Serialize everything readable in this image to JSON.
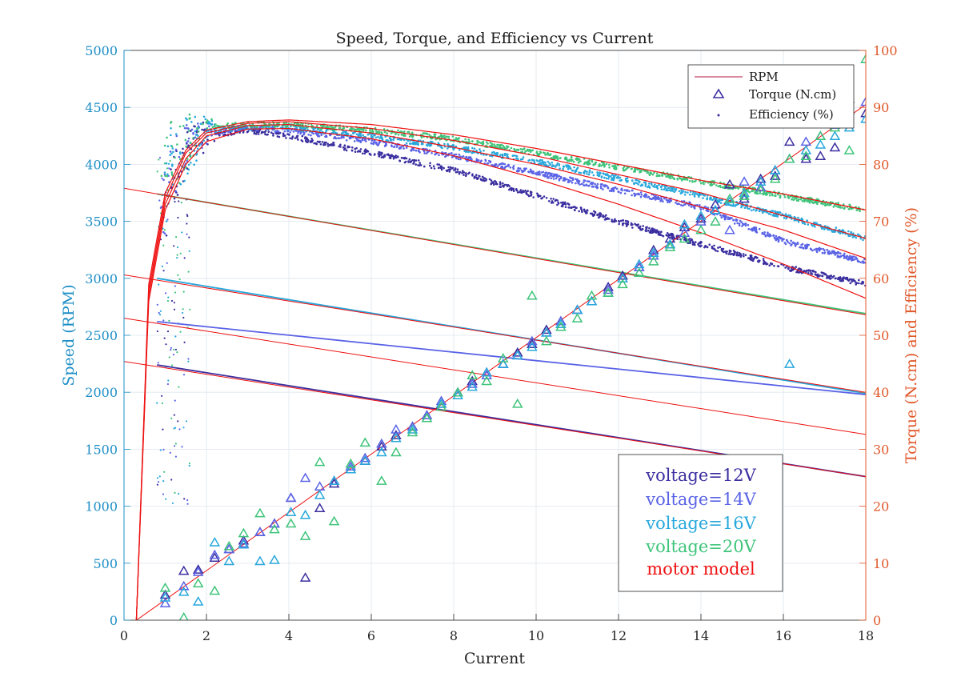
{
  "chart_data": {
    "type": "scatter",
    "title": "Speed, Torque, and Efficiency vs Current",
    "xlabel": "Current",
    "ylabel_left": "Speed (RPM)",
    "ylabel_right": "Torque (N.cm) and Efficiency (%)",
    "xlim": [
      0,
      18
    ],
    "ylim_left": [
      0,
      5000
    ],
    "ylim_right": [
      0,
      100
    ],
    "xticks": [
      "0",
      "2",
      "4",
      "6",
      "8",
      "10",
      "12",
      "14",
      "16",
      "18"
    ],
    "yticks_left": [
      "0",
      "500",
      "1000",
      "1500",
      "2000",
      "2500",
      "3000",
      "3500",
      "4000",
      "4500",
      "5000"
    ],
    "yticks_right": [
      "0",
      "10",
      "20",
      "30",
      "40",
      "50",
      "60",
      "70",
      "80",
      "90",
      "100"
    ],
    "grid": true,
    "legend_position": "top-right",
    "legend": [
      {
        "label": "RPM",
        "marker": "line",
        "color": "#b3123c"
      },
      {
        "label": "Torque (N.cm)",
        "marker": "triangle",
        "color": "#3b2fa0"
      },
      {
        "label": "Efficiency (%)",
        "marker": "dot",
        "color": "#3b2fa0"
      }
    ],
    "annotation_box": [
      {
        "text": "voltage=12V",
        "color": "#3b2fa0"
      },
      {
        "text": "voltage=14V",
        "color": "#5a63e6"
      },
      {
        "text": "voltage=16V",
        "color": "#28a8dc"
      },
      {
        "text": "voltage=20V",
        "color": "#3ec47a"
      },
      {
        "text": "motor model",
        "color": "#ee1111"
      }
    ],
    "series": [
      {
        "name": "voltage=12V",
        "color": "#3b2fa0",
        "rpm": {
          "x": [
            0.8,
            18
          ],
          "y": [
            2240,
            1260
          ]
        },
        "efficiency_peak": {
          "x": 3.4,
          "y": 86
        },
        "efficiency": {
          "x": [
            0.9,
            1.2,
            2,
            3,
            4,
            6,
            8,
            10,
            12,
            14,
            16,
            18
          ],
          "y": [
            72,
            80,
            85,
            86,
            85,
            82,
            79,
            74.5,
            70,
            66,
            62,
            59
          ]
        }
      },
      {
        "name": "voltage=14V",
        "color": "#5a63e6",
        "rpm": {
          "x": [
            0.8,
            18
          ],
          "y": [
            2620,
            1980
          ]
        },
        "efficiency": {
          "x": [
            0.9,
            1.2,
            2,
            3,
            4,
            6,
            8,
            10,
            12,
            14,
            16,
            18
          ],
          "y": [
            73,
            80.5,
            85.5,
            86.5,
            86,
            84,
            81.5,
            78.5,
            75.5,
            72.5,
            66.5,
            63
          ]
        }
      },
      {
        "name": "voltage=16V",
        "color": "#28a8dc",
        "rpm": {
          "x": [
            0.8,
            18
          ],
          "y": [
            3000,
            1990
          ]
        },
        "efficiency": {
          "x": [
            0.9,
            1.2,
            2,
            3,
            4,
            6,
            8,
            10,
            12,
            14,
            16,
            18
          ],
          "y": [
            74,
            81,
            86,
            86.5,
            86.5,
            85,
            83,
            80.5,
            77.5,
            74.5,
            71,
            67
          ]
        }
      },
      {
        "name": "voltage=20V",
        "color": "#3ec47a",
        "rpm": {
          "x": [
            0.8,
            18
          ],
          "y": [
            3740,
            2690
          ]
        },
        "efficiency": {
          "x": [
            0.9,
            1.2,
            2,
            3,
            4,
            6,
            8,
            10,
            12,
            14,
            16,
            18
          ],
          "y": [
            76,
            82,
            86.5,
            87,
            87,
            86,
            84.5,
            82,
            79.5,
            77,
            74.5,
            72
          ]
        }
      }
    ],
    "motor_model": {
      "color": "#ee1111",
      "torque_line": {
        "x": [
          0.3,
          18
        ],
        "y": [
          0,
          90.5
        ]
      },
      "rpm_lines": [
        {
          "x": [
            0,
            18
          ],
          "y": [
            2270,
            1260
          ]
        },
        {
          "x": [
            0,
            18
          ],
          "y": [
            2650,
            1630
          ]
        },
        {
          "x": [
            0,
            18
          ],
          "y": [
            3030,
            2000
          ]
        },
        {
          "x": [
            0,
            18
          ],
          "y": [
            3790,
            2680
          ]
        }
      ],
      "efficiency_curves": [
        {
          "x": [
            0.3,
            0.6,
            1,
            1.5,
            2,
            3,
            4,
            6,
            8,
            10,
            12,
            14,
            16,
            18
          ],
          "y": [
            0,
            56,
            72,
            80,
            84,
            86.2,
            86.3,
            84.5,
            81.5,
            77.5,
            73,
            68,
            62.5,
            56.5
          ]
        },
        {
          "x": [
            0.3,
            0.6,
            1,
            1.5,
            2,
            3,
            4,
            6,
            8,
            10,
            12,
            14,
            16,
            18
          ],
          "y": [
            0,
            57,
            73,
            81,
            85,
            86.8,
            87,
            85.5,
            83,
            80,
            76.5,
            72.5,
            68.5,
            63.5
          ]
        },
        {
          "x": [
            0.3,
            0.6,
            1,
            1.5,
            2,
            3,
            4,
            6,
            8,
            10,
            12,
            14,
            16,
            18
          ],
          "y": [
            0,
            58,
            74,
            82,
            85.5,
            87.2,
            87.5,
            86.3,
            84.2,
            81.5,
            78.2,
            75,
            71,
            67
          ]
        },
        {
          "x": [
            0.3,
            0.6,
            1,
            1.5,
            2,
            3,
            4,
            6,
            8,
            10,
            12,
            14,
            16,
            18
          ],
          "y": [
            0,
            59,
            75,
            82.5,
            86,
            87.5,
            87.8,
            87,
            85.2,
            82.8,
            80,
            77.2,
            74.8,
            72
          ]
        }
      ]
    },
    "torque_points": {
      "12V": {
        "x": [
          1,
          1.45,
          1.8,
          2.2,
          2.55,
          2.9,
          3.3,
          3.65,
          4.05,
          4.4,
          4.75,
          5.1,
          5.5,
          5.85,
          6.25,
          6.6,
          7,
          7.35,
          7.7,
          8.1,
          8.45,
          8.8,
          9.2,
          9.55,
          9.9,
          10.25,
          10.6,
          11,
          11.35,
          11.75,
          12.1,
          12.5,
          12.85,
          13.25,
          13.6,
          14,
          14.35,
          14.7,
          15.05,
          15.45,
          15.8,
          16.15,
          16.55,
          16.9,
          17.25,
          17.6,
          18
        ],
        "y": [
          4.5,
          8.7,
          8.9,
          11,
          12.5,
          14,
          15.5,
          17,
          21.5,
          7.5,
          19.7,
          24,
          26.5,
          28,
          30.5,
          32.5,
          34,
          36,
          38,
          40,
          42,
          43.5,
          45,
          47,
          48.5,
          51,
          52.5,
          54.5,
          56,
          58.5,
          60.5,
          62,
          65,
          67,
          69,
          70.5,
          73,
          76.5,
          74,
          77.5,
          78,
          84,
          81,
          81.5,
          83,
          91.5,
          89
        ]
      },
      "14V": {
        "x": [
          1,
          1.45,
          1.8,
          2.2,
          2.55,
          2.9,
          3.3,
          3.65,
          4.05,
          4.4,
          4.75,
          5.1,
          5.5,
          5.85,
          6.25,
          6.6,
          7,
          7.35,
          7.7,
          8.1,
          8.45,
          8.8,
          9.2,
          9.55,
          9.9,
          10.25,
          10.6,
          11,
          11.35,
          11.75,
          12.1,
          12.5,
          12.85,
          13.25,
          13.6,
          14,
          14.35,
          14.7,
          15.05,
          15.45,
          15.8,
          16.15,
          16.55,
          16.9,
          17.25,
          17.6,
          18
        ],
        "y": [
          3,
          6,
          8.5,
          11.5,
          12.5,
          13.5,
          15.5,
          17,
          21.5,
          25,
          23.5,
          24.5,
          27,
          28.5,
          31,
          33.5,
          34,
          36,
          38.5,
          40,
          41.5,
          43,
          45,
          46.5,
          49,
          50.5,
          52.5,
          54.5,
          56,
          58,
          60,
          62,
          64,
          66,
          68,
          70,
          72,
          68.5,
          77,
          76,
          79,
          81,
          84,
          85,
          87,
          89.5,
          91
        ]
      },
      "16V": {
        "x": [
          1,
          1.45,
          1.8,
          2.2,
          2.55,
          2.9,
          3.3,
          3.65,
          4.05,
          4.4,
          4.75,
          5.1,
          5.5,
          5.85,
          6.25,
          6.6,
          7,
          7.35,
          7.7,
          8.1,
          8.45,
          8.8,
          9.2,
          9.55,
          9.9,
          10.25,
          10.6,
          11,
          11.35,
          11.75,
          12.1,
          12.5,
          12.85,
          13.25,
          13.6,
          14,
          14.35,
          14.7,
          15.05,
          15.45,
          15.8,
          16.15,
          16.55,
          16.9,
          17.25,
          17.6,
          18
        ],
        "y": [
          4,
          5,
          3.3,
          13.7,
          10.4,
          13.3,
          10.4,
          10.6,
          19,
          18.5,
          22,
          24.5,
          26.5,
          28,
          29.5,
          32,
          33.5,
          35.5,
          38,
          39.5,
          41,
          43.5,
          45,
          46.5,
          48,
          50.5,
          52,
          54.5,
          56,
          57.5,
          60,
          62.5,
          64.5,
          66,
          69.5,
          71,
          72,
          73.5,
          75,
          77,
          79,
          45,
          82.5,
          83.5,
          85,
          86.5,
          88
        ]
      },
      "20V": {
        "x": [
          1,
          1.45,
          1.8,
          2.2,
          2.55,
          2.9,
          3.3,
          3.65,
          4.05,
          4.4,
          4.75,
          5.1,
          5.5,
          5.85,
          6.25,
          6.6,
          7,
          7.35,
          7.7,
          8.1,
          8.45,
          8.8,
          9.2,
          9.55,
          9.9,
          10.25,
          10.6,
          11,
          11.35,
          11.75,
          12.1,
          12.5,
          12.85,
          13.25,
          13.6,
          14,
          14.35,
          14.7,
          15.05,
          15.45,
          15.8,
          16.15,
          16.55,
          16.9,
          17.25,
          17.6,
          18
        ],
        "y": [
          5.7,
          0.5,
          6.5,
          5.2,
          13,
          15.3,
          18.8,
          16,
          17,
          14.8,
          27.8,
          17.4,
          27.5,
          31.2,
          24.5,
          29.5,
          33,
          35.5,
          37.5,
          40,
          43,
          42,
          46,
          38,
          57,
          49,
          51.5,
          53,
          57,
          57.5,
          59,
          61,
          63,
          65.5,
          67,
          68.5,
          70,
          74,
          74.5,
          75.5,
          77.5,
          81,
          81.5,
          85,
          86.5,
          82.5,
          98.5
        ]
      }
    }
  }
}
